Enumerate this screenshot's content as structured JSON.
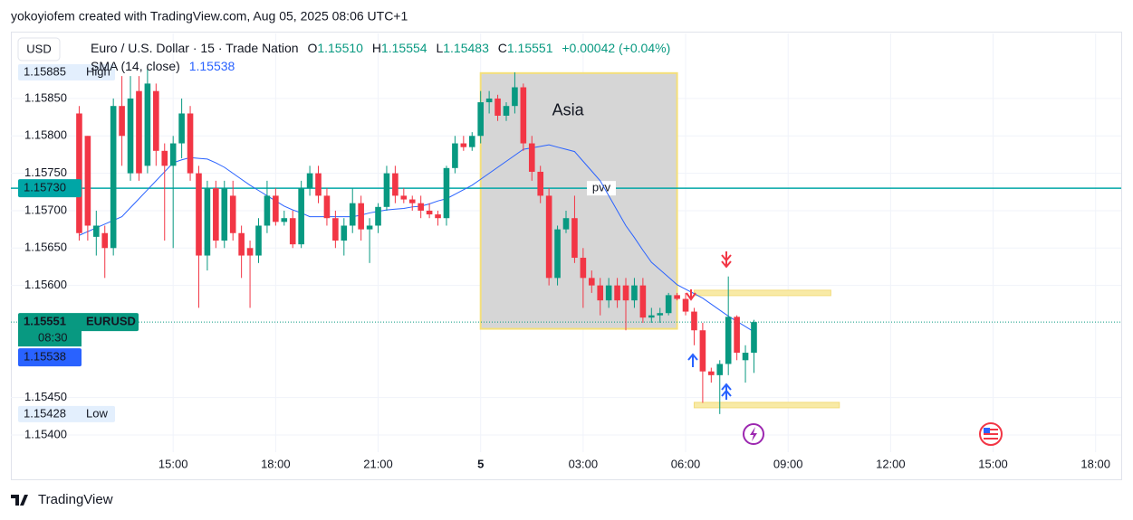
{
  "header": {
    "attribution": "yokoyiofem created with TradingView.com, Aug 05, 2025 08:06 UTC+1",
    "currency": "USD",
    "footer": "TradingView"
  },
  "chart_data": {
    "type": "candlestick",
    "title": "Euro / U.S. Dollar · 15 · Trade Nation",
    "ohlc_labels": [
      {
        "key": "O",
        "value": "1.15510"
      },
      {
        "key": "H",
        "value": "1.15554"
      },
      {
        "key": "L",
        "value": "1.15483"
      },
      {
        "key": "C",
        "value": "1.15551"
      }
    ],
    "change": "+0.00042 (+0.04%)",
    "up_color": "#089981",
    "down_color": "#f23645",
    "open": [
      1.1583,
      1.158,
      1.15665,
      1.1567,
      1.1565,
      1.1584,
      1.1575,
      1.1586,
      1.1576,
      1.1586,
      1.1578,
      1.1576,
      1.1579,
      1.1583,
      1.1575,
      1.1564,
      1.1573,
      1.1566,
      1.1572,
      1.1567,
      1.1565,
      1.1564,
      1.1568,
      1.1572,
      1.15685,
      1.1569,
      1.15655,
      1.1573,
      1.1575,
      1.1572,
      1.1569,
      1.1566,
      1.1568,
      1.1571,
      1.15675,
      1.1568,
      1.15705,
      1.1575,
      1.1572,
      1.15715,
      1.1571,
      1.157,
      1.15695,
      1.1569,
      1.15757,
      1.1579,
      1.15785,
      1.158,
      1.15845,
      1.1585,
      1.15827,
      1.1584,
      1.15865,
      1.1579,
      1.15752,
      1.1572,
      1.1561,
      1.15675,
      1.1569,
      1.15637,
      1.1561,
      1.156,
      1.1558,
      1.156,
      1.156,
      1.1558,
      1.156,
      1.15557,
      1.1556,
      1.15563,
      1.15587,
      1.15582,
      1.15565,
      1.1554,
      1.15485,
      1.1548,
      1.15495,
      1.15558,
      1.155,
      1.1551
    ],
    "high": [
      1.1584,
      1.158,
      1.157,
      1.1568,
      1.1585,
      1.1588,
      1.1588,
      1.1588,
      1.1589,
      1.1587,
      1.1579,
      1.158,
      1.1585,
      1.1584,
      1.1576,
      1.1574,
      1.1574,
      1.1574,
      1.1574,
      1.1568,
      1.1566,
      1.1569,
      1.1574,
      1.1573,
      1.157,
      1.157,
      1.1574,
      1.1576,
      1.1576,
      1.1573,
      1.157,
      1.1569,
      1.1573,
      1.1572,
      1.1569,
      1.1571,
      1.1576,
      1.1576,
      1.1573,
      1.1572,
      1.1572,
      1.1571,
      1.157,
      1.1576,
      1.158,
      1.158,
      1.15805,
      1.1586,
      1.1586,
      1.15855,
      1.15845,
      1.15885,
      1.1587,
      1.158,
      1.1576,
      1.1573,
      1.1568,
      1.157,
      1.1572,
      1.1565,
      1.1562,
      1.1561,
      1.1561,
      1.1561,
      1.1561,
      1.1561,
      1.1561,
      1.1557,
      1.1557,
      1.1559,
      1.1559,
      1.1559,
      1.1557,
      1.1555,
      1.1549,
      1.155,
      1.15612,
      1.1556,
      1.1552,
      1.15554
    ],
    "low": [
      1.1566,
      1.1566,
      1.1564,
      1.1561,
      1.1564,
      1.1576,
      1.1574,
      1.1574,
      1.1575,
      1.1576,
      1.1566,
      1.1565,
      1.1577,
      1.1574,
      1.1557,
      1.1562,
      1.1565,
      1.1565,
      1.1566,
      1.1561,
      1.1557,
      1.1563,
      1.1567,
      1.1568,
      1.1568,
      1.1565,
      1.1565,
      1.1572,
      1.1571,
      1.1568,
      1.1565,
      1.1564,
      1.1567,
      1.1566,
      1.1563,
      1.1567,
      1.157,
      1.1571,
      1.1571,
      1.157,
      1.1569,
      1.1569,
      1.1568,
      1.1568,
      1.1575,
      1.1578,
      1.1578,
      1.1579,
      1.1583,
      1.1582,
      1.1582,
      1.1583,
      1.1578,
      1.1574,
      1.1571,
      1.156,
      1.156,
      1.1567,
      1.1563,
      1.1557,
      1.1559,
      1.1556,
      1.1557,
      1.1557,
      1.1554,
      1.1557,
      1.1555,
      1.1555,
      1.1555,
      1.1556,
      1.1558,
      1.1556,
      1.1552,
      1.15443,
      1.1547,
      1.15428,
      1.1548,
      1.155,
      1.1547,
      1.15483
    ],
    "close": [
      1.1567,
      1.1568,
      1.1568,
      1.1565,
      1.1584,
      1.158,
      1.1585,
      1.1575,
      1.1587,
      1.1578,
      1.1576,
      1.1579,
      1.1583,
      1.1575,
      1.1564,
      1.1573,
      1.1566,
      1.1573,
      1.1567,
      1.1564,
      1.1564,
      1.1568,
      1.1572,
      1.15685,
      1.1569,
      1.15655,
      1.1573,
      1.1575,
      1.1572,
      1.1569,
      1.1566,
      1.1568,
      1.1571,
      1.15675,
      1.1568,
      1.15705,
      1.1575,
      1.1572,
      1.15715,
      1.1571,
      1.157,
      1.15695,
      1.1569,
      1.15757,
      1.1579,
      1.15785,
      1.158,
      1.15845,
      1.1585,
      1.15827,
      1.1584,
      1.15865,
      1.1579,
      1.15752,
      1.1572,
      1.1561,
      1.15675,
      1.1569,
      1.15637,
      1.1561,
      1.156,
      1.1558,
      1.156,
      1.1558,
      1.1558,
      1.156,
      1.15557,
      1.1556,
      1.15563,
      1.15587,
      1.15582,
      1.15565,
      1.1554,
      1.15485,
      1.1548,
      1.15495,
      1.15558,
      1.1551,
      1.1551,
      1.15551
    ],
    "sma": {
      "name": "SMA (14, close)",
      "color": "#2962ff",
      "values": [
        1.15667,
        1.15672,
        1.15677,
        1.15682,
        1.15687,
        1.15692,
        1.15704,
        1.15716,
        1.15728,
        1.1574,
        1.15752,
        1.15764,
        1.15768,
        1.15771,
        1.1577,
        1.15769,
        1.15764,
        1.15758,
        1.1575,
        1.15742,
        1.15734,
        1.15727,
        1.1572,
        1.15713,
        1.15706,
        1.15701,
        1.15697,
        1.15692,
        1.15692,
        1.15692,
        1.15692,
        1.15692,
        1.15692,
        1.15694,
        1.15697,
        1.15699,
        1.15701,
        1.15702,
        1.15703,
        1.15705,
        1.15706,
        1.15709,
        1.15713,
        1.15716,
        1.15722,
        1.15728,
        1.15734,
        1.15742,
        1.1575,
        1.15758,
        1.15766,
        1.15774,
        1.15782,
        1.15784,
        1.15786,
        1.15788,
        1.15785,
        1.15782,
        1.15779,
        1.15766,
        1.15753,
        1.1574,
        1.1572,
        1.157,
        1.1568,
        1.15664,
        1.15647,
        1.15631,
        1.15621,
        1.15611,
        1.15601,
        1.15595,
        1.15589,
        1.15583,
        1.15575,
        1.15567,
        1.15559,
        1.15552,
        1.15545,
        1.15538
      ]
    },
    "ylim": [
      1.15377,
      1.15937
    ],
    "yticks": [
      {
        "value": 1.154,
        "label": "1.15400"
      },
      {
        "value": 1.1545,
        "label": "1.15450"
      },
      {
        "value": 1.156,
        "label": "1.15600"
      },
      {
        "value": 1.1565,
        "label": "1.15650"
      },
      {
        "value": 1.157,
        "label": "1.15700"
      },
      {
        "value": 1.1575,
        "label": "1.15750"
      },
      {
        "value": 1.158,
        "label": "1.15800"
      },
      {
        "value": 1.1585,
        "label": "1.15850"
      }
    ],
    "xlim": [
      -8,
      122
    ],
    "xticks": [
      {
        "value": 11,
        "label": "15:00"
      },
      {
        "value": 23,
        "label": "18:00"
      },
      {
        "value": 35,
        "label": "21:00"
      },
      {
        "value": 47,
        "label": "5"
      },
      {
        "value": 59,
        "label": "03:00"
      },
      {
        "value": 71,
        "label": "06:00"
      },
      {
        "value": 83,
        "label": "09:00"
      },
      {
        "value": 95,
        "label": "12:00"
      },
      {
        "value": 107,
        "label": "15:00"
      },
      {
        "value": 119,
        "label": "18:00"
      }
    ],
    "grid": true,
    "levels": [
      {
        "name": "pvv",
        "value": 1.1573,
        "label": "1.15730",
        "color": "#00a6a6"
      }
    ],
    "last_price": {
      "value": 1.15551,
      "symbol": "EURUSD",
      "countdown": "08:30"
    },
    "high_marker": {
      "label": "High",
      "value": 1.15885
    },
    "low_marker": {
      "label": "Low",
      "value": 1.15428
    },
    "zones": [
      {
        "value": 1.1559,
        "from": 72,
        "to": 88
      },
      {
        "value": 1.1544,
        "from": 72,
        "to": 89
      }
    ],
    "box": {
      "text": "Asia",
      "from": 47,
      "to": 70,
      "high": 1.15884,
      "low": 1.15542
    }
  }
}
